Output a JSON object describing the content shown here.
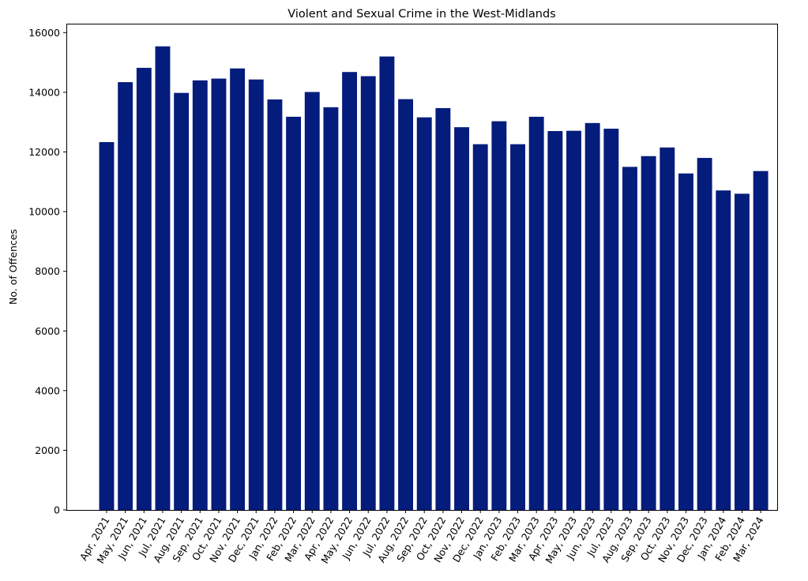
{
  "chart_data": {
    "type": "bar",
    "title": "Violent and Sexual Crime in the West-Midlands",
    "xlabel": "",
    "ylabel": "No. of Offences",
    "bar_color": "#041c7c",
    "grid": false,
    "legend": "none",
    "ylim": [
      0,
      16300
    ],
    "yticks": [
      0,
      2000,
      4000,
      6000,
      8000,
      10000,
      12000,
      14000,
      16000
    ],
    "categories": [
      "Apr, 2021",
      "May, 2021",
      "Jun, 2021",
      "Jul, 2021",
      "Aug, 2021",
      "Sep, 2021",
      "Oct, 2021",
      "Nov, 2021",
      "Dec, 2021",
      "Jan, 2022",
      "Feb, 2022",
      "Mar, 2022",
      "Apr, 2022",
      "May, 2022",
      "Jun, 2022",
      "Jul, 2022",
      "Aug, 2022",
      "Sep, 2022",
      "Oct, 2022",
      "Nov, 2022",
      "Dec, 2022",
      "Jan, 2023",
      "Feb, 2023",
      "Mar, 2023",
      "Apr, 2023",
      "May, 2023",
      "Jun, 2023",
      "Jul, 2023",
      "Aug, 2023",
      "Sep, 2023",
      "Oct, 2023",
      "Nov, 2023",
      "Dec, 2023",
      "Jan, 2024",
      "Feb, 2024",
      "Mar, 2024"
    ],
    "values": [
      12330,
      14340,
      14820,
      15540,
      13980,
      14400,
      14460,
      14800,
      14430,
      13760,
      13180,
      14010,
      13500,
      14680,
      14540,
      15200,
      13770,
      13160,
      13470,
      12830,
      12260,
      13030,
      12260,
      13180,
      12700,
      12710,
      12970,
      12780,
      11500,
      11860,
      12150,
      11280,
      11800,
      10710,
      10600,
      11360
    ]
  }
}
